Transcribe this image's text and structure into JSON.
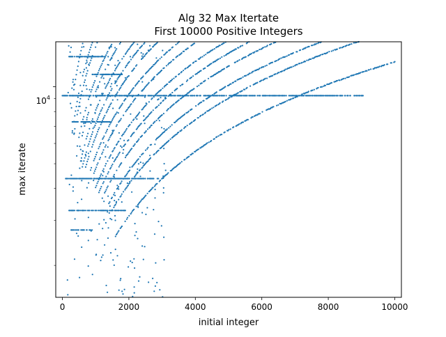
{
  "chart_data": {
    "type": "scatter",
    "title": "Alg 32 Max Itertate",
    "subtitle": "First 10000 Positive Integers",
    "xlabel": "initial integer",
    "ylabel": "max iterate",
    "xlim": [
      -200,
      10200
    ],
    "ylim": [
      1500,
      15000
    ],
    "yscale": "log",
    "grid": false,
    "color": "#1f77b4",
    "x_ticks": [
      {
        "value": 0,
        "label": "0"
      },
      {
        "value": 2000,
        "label": "2000"
      },
      {
        "value": 4000,
        "label": "4000"
      },
      {
        "value": 6000,
        "label": "6000"
      },
      {
        "value": 8000,
        "label": "8000"
      },
      {
        "value": 10000,
        "label": "10000"
      }
    ],
    "y_major_tick": {
      "value": 10000,
      "label_base": "10",
      "label_exp": "4"
    },
    "y_minor_ticks": [
      2000,
      3000,
      4000,
      5000,
      6000,
      7000,
      8000,
      9000
    ],
    "curves": [
      {
        "k": 1.0,
        "x_start": 1600,
        "x_end": 10000
      },
      {
        "k": 1.333,
        "x_start": 1500,
        "x_end": 10000
      },
      {
        "k": 1.5,
        "x_start": 1400,
        "x_end": 10000
      },
      {
        "k": 1.778,
        "x_start": 1200,
        "x_end": 9200
      },
      {
        "k": 2.0,
        "x_start": 1100,
        "x_end": 8300
      },
      {
        "k": 2.25,
        "x_start": 1000,
        "x_end": 7300
      },
      {
        "k": 2.667,
        "x_start": 900,
        "x_end": 6200
      },
      {
        "k": 3.0,
        "x_start": 800,
        "x_end": 5500
      },
      {
        "k": 3.556,
        "x_start": 700,
        "x_end": 4700
      },
      {
        "k": 4.0,
        "x_start": 600,
        "x_end": 4100
      },
      {
        "k": 4.5,
        "x_start": 550,
        "x_end": 3700
      },
      {
        "k": 5.333,
        "x_start": 500,
        "x_end": 3100
      },
      {
        "k": 6.0,
        "x_start": 450,
        "x_end": 2800
      },
      {
        "k": 8.0,
        "x_start": 350,
        "x_end": 2100
      },
      {
        "k": 9.0,
        "x_start": 300,
        "x_end": 1900
      },
      {
        "k": 12.0,
        "x_start": 250,
        "x_end": 1400
      }
    ],
    "plateaus": [
      {
        "y": 9232,
        "x_start": 0,
        "x_end": 9100
      },
      {
        "y": 4372,
        "x_start": 100,
        "x_end": 2900
      },
      {
        "y": 3280,
        "x_start": 200,
        "x_end": 1900
      },
      {
        "y": 13120,
        "x_start": 200,
        "x_end": 1300
      },
      {
        "y": 7288,
        "x_start": 300,
        "x_end": 1500
      },
      {
        "y": 2752,
        "x_start": 250,
        "x_end": 900
      },
      {
        "y": 11176,
        "x_start": 900,
        "x_end": 1800
      }
    ]
  }
}
